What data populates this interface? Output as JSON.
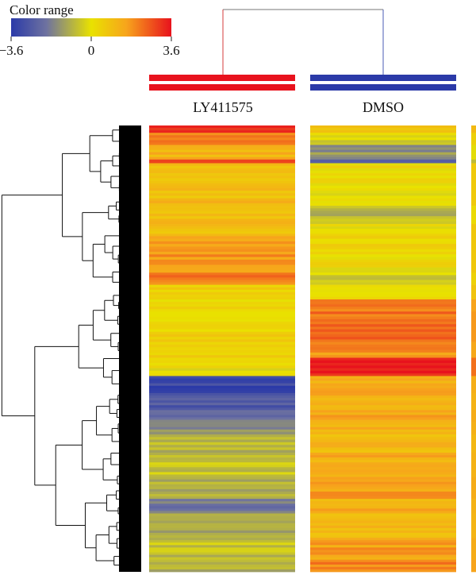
{
  "chart_data": {
    "type": "heatmap",
    "colorbar": {
      "title": "Color range",
      "min": -3.6,
      "max": 3.6,
      "ticks": [
        "−3.6",
        "0",
        "3.6"
      ],
      "colors": [
        "#2b3aa8",
        "#6e72a0",
        "#e9e200",
        "#f7a41c",
        "#e8121d"
      ]
    },
    "columns": [
      {
        "label": "LY411575",
        "bar_color": "#e8121d"
      },
      {
        "label": "DMSO",
        "bar_color": "#2b3aa8"
      }
    ],
    "row_dendrogram": "left",
    "column_dendrogram": "top",
    "row_blocks": [
      {
        "rows": 6,
        "values": [
          3.4,
          0.9
        ]
      },
      {
        "rows": 10,
        "values": [
          2.2,
          -0.2
        ]
      },
      {
        "rows": 12,
        "values": [
          1.2,
          -1.4
        ]
      },
      {
        "rows": 3,
        "values": [
          3.0,
          -2.6
        ]
      },
      {
        "rows": 35,
        "values": [
          1.0,
          0.1
        ]
      },
      {
        "rows": 15,
        "values": [
          0.9,
          -0.8
        ]
      },
      {
        "rows": 10,
        "values": [
          0.9,
          0.2
        ]
      },
      {
        "rows": 30,
        "values": [
          1.8,
          0.2
        ]
      },
      {
        "rows": 10,
        "values": [
          2.2,
          -0.3
        ]
      },
      {
        "rows": 12,
        "values": [
          0.5,
          0.4
        ]
      },
      {
        "rows": 10,
        "values": [
          0.4,
          2.0
        ]
      },
      {
        "rows": 25,
        "values": [
          0.4,
          2.3
        ]
      },
      {
        "rows": 13,
        "values": [
          0.3,
          1.8
        ]
      },
      {
        "rows": 15,
        "values": [
          0.1,
          3.4
        ]
      },
      {
        "rows": 14,
        "values": [
          -3.2,
          1.5
        ]
      },
      {
        "rows": 14,
        "values": [
          -2.7,
          1.3
        ]
      },
      {
        "rows": 10,
        "values": [
          -2.0,
          1.6
        ]
      },
      {
        "rows": 10,
        "values": [
          -1.5,
          1.4
        ]
      },
      {
        "rows": 15,
        "values": [
          -0.8,
          1.0
        ]
      },
      {
        "rows": 20,
        "values": [
          -0.6,
          1.3
        ]
      },
      {
        "rows": 18,
        "values": [
          -0.9,
          1.6
        ]
      },
      {
        "rows": 12,
        "values": [
          -1.9,
          1.3
        ]
      },
      {
        "rows": 20,
        "values": [
          -0.9,
          1.2
        ]
      },
      {
        "rows": 18,
        "values": [
          -0.6,
          1.6
        ]
      },
      {
        "rows": 10,
        "values": [
          -0.8,
          2.0
        ]
      }
    ]
  }
}
